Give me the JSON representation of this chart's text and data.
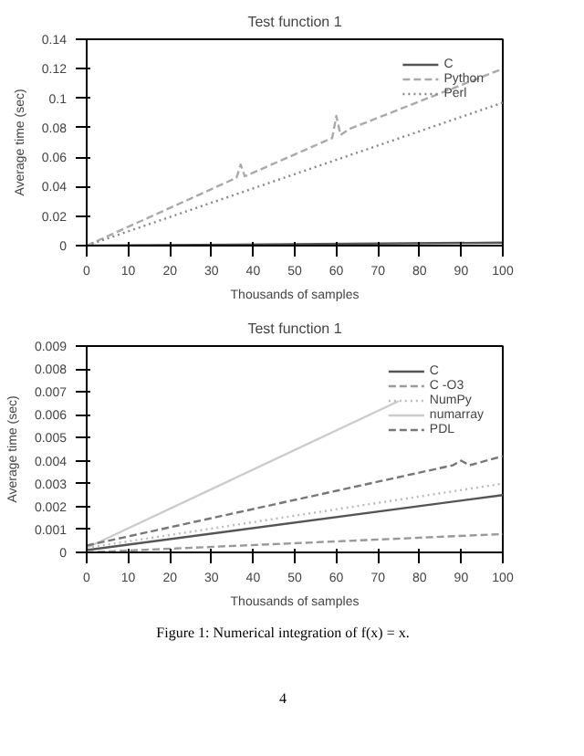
{
  "chart_data": [
    {
      "type": "line",
      "title": "Test function 1",
      "xlabel": "Thousands of samples",
      "ylabel": "Average time (sec)",
      "xlim": [
        0,
        100
      ],
      "ylim": [
        0,
        0.14
      ],
      "xticks": [
        0,
        10,
        20,
        30,
        40,
        50,
        60,
        70,
        80,
        90,
        100
      ],
      "yticks": [
        0,
        0.02,
        0.04,
        0.06,
        0.08,
        0.1,
        0.12,
        0.14
      ],
      "grid": false,
      "legend": "top right",
      "series": [
        {
          "name": "C",
          "color": "#555555",
          "line_style": "solid",
          "x": [
            0,
            100
          ],
          "values": [
            0,
            0.002
          ]
        },
        {
          "name": "Python",
          "color": "#aaaaaa",
          "line_style": "dashed",
          "x": [
            0,
            36,
            37,
            38,
            59,
            60,
            61,
            63,
            100
          ],
          "values": [
            0,
            0.046,
            0.055,
            0.047,
            0.073,
            0.088,
            0.075,
            0.079,
            0.12
          ]
        },
        {
          "name": "Perl",
          "color": "#888888",
          "line_style": "dotted",
          "x": [
            0,
            100
          ],
          "values": [
            0,
            0.097
          ]
        }
      ]
    },
    {
      "type": "line",
      "title": "Test function 1",
      "xlabel": "Thousands of samples",
      "ylabel": "Average time (sec)",
      "xlim": [
        0,
        100
      ],
      "ylim": [
        0,
        0.009
      ],
      "xticks": [
        0,
        10,
        20,
        30,
        40,
        50,
        60,
        70,
        80,
        90,
        100
      ],
      "yticks": [
        0,
        0.001,
        0.002,
        0.003,
        0.004,
        0.005,
        0.006,
        0.007,
        0.008,
        0.009
      ],
      "grid": false,
      "legend": "top right",
      "annotations": [
        "Figure 1: Numerical integration of f(x) = x.",
        "4"
      ],
      "series": [
        {
          "name": "C",
          "color": "#555555",
          "line_style": "solid",
          "x": [
            0,
            100
          ],
          "values": [
            0.0001,
            0.0025
          ]
        },
        {
          "name": "C -O3",
          "color": "#999999",
          "line_style": "dashed",
          "x": [
            0,
            100
          ],
          "values": [
            0,
            0.0008
          ]
        },
        {
          "name": "NumPy",
          "color": "#bbbbbb",
          "line_style": "dotted",
          "x": [
            0,
            100
          ],
          "values": [
            0.0002,
            0.003
          ]
        },
        {
          "name": "numarray",
          "color": "#cccccc",
          "line_style": "solid",
          "x": [
            0,
            75
          ],
          "values": [
            0.0002,
            0.0066
          ]
        },
        {
          "name": "PDL",
          "color": "#777777",
          "line_style": "dashed",
          "x": [
            0,
            88,
            90,
            92,
            100
          ],
          "values": [
            0.0003,
            0.0038,
            0.004,
            0.0038,
            0.0042
          ]
        }
      ]
    }
  ]
}
